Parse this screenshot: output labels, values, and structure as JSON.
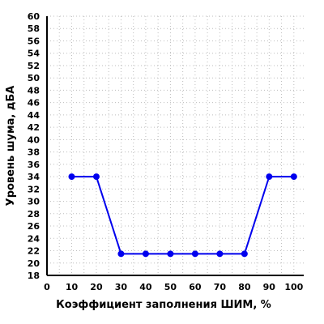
{
  "chart_data": {
    "type": "line",
    "xlabel": "Коэффициент заполнения ШИМ, %",
    "ylabel": "Уровень шума, дБА",
    "xlim": [
      0,
      104
    ],
    "ylim": [
      18,
      60
    ],
    "x_ticks": [
      0,
      10,
      20,
      30,
      40,
      50,
      60,
      70,
      80,
      90,
      100
    ],
    "y_ticks": [
      18,
      20,
      22,
      24,
      26,
      28,
      30,
      32,
      34,
      36,
      38,
      40,
      42,
      44,
      46,
      48,
      50,
      52,
      54,
      56,
      58,
      60
    ],
    "grid": true,
    "x": [
      10,
      20,
      30,
      40,
      50,
      60,
      70,
      80,
      90,
      100
    ],
    "values": [
      34,
      34,
      21.5,
      21.5,
      21.5,
      21.5,
      21.5,
      21.5,
      34,
      34
    ],
    "colors": {
      "series": "#0000ee",
      "grid": "#bdbdbd",
      "axis": "#000000"
    }
  }
}
